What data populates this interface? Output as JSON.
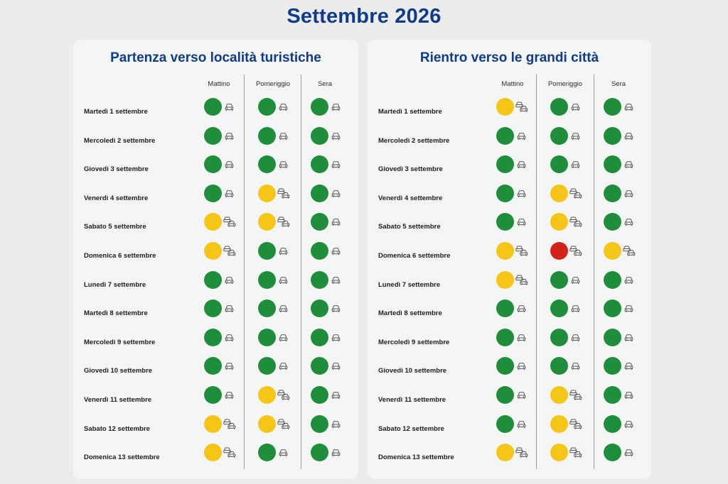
{
  "title": "Settembre 2026",
  "colors": {
    "green": "#1e8e3a",
    "yellow": "#f5c518",
    "red": "#d3231b",
    "title_blue": "#0f3b8a"
  },
  "panels": [
    {
      "title": "Partenza verso località turistiche",
      "columns": [
        "Mattino",
        "Pomeriggio",
        "Sera"
      ],
      "rows": [
        {
          "day": "Martedì 1 settembre",
          "levels": [
            "green",
            "green",
            "green"
          ]
        },
        {
          "day": "Mercoledì 2 settembre",
          "levels": [
            "green",
            "green",
            "green"
          ]
        },
        {
          "day": "Giovedì 3 settembre",
          "levels": [
            "green",
            "green",
            "green"
          ]
        },
        {
          "day": "Venerdì 4 settembre",
          "levels": [
            "green",
            "yellow",
            "green"
          ]
        },
        {
          "day": "Sabato 5 settembre",
          "levels": [
            "yellow",
            "yellow",
            "green"
          ]
        },
        {
          "day": "Domenica 6 settembre",
          "levels": [
            "yellow",
            "green",
            "green"
          ]
        },
        {
          "day": "Lunedì 7 settembre",
          "levels": [
            "green",
            "green",
            "green"
          ]
        },
        {
          "day": "Martedì 8 settembre",
          "levels": [
            "green",
            "green",
            "green"
          ]
        },
        {
          "day": "Mercoledì 9 settembre",
          "levels": [
            "green",
            "green",
            "green"
          ]
        },
        {
          "day": "Giovedì 10 settembre",
          "levels": [
            "green",
            "green",
            "green"
          ]
        },
        {
          "day": "Venerdì 11 settembre",
          "levels": [
            "green",
            "yellow",
            "green"
          ]
        },
        {
          "day": "Sabato 12 settembre",
          "levels": [
            "yellow",
            "yellow",
            "green"
          ]
        },
        {
          "day": "Domenica 13 settembre",
          "levels": [
            "yellow",
            "green",
            "green"
          ]
        }
      ]
    },
    {
      "title": "Rientro verso le grandi città",
      "columns": [
        "Mattino",
        "Pomeriggio",
        "Sera"
      ],
      "rows": [
        {
          "day": "Martedì 1 settembre",
          "levels": [
            "yellow",
            "green",
            "green"
          ]
        },
        {
          "day": "Mercoledì 2 settembre",
          "levels": [
            "green",
            "green",
            "green"
          ]
        },
        {
          "day": "Giovedì 3 settembre",
          "levels": [
            "green",
            "green",
            "green"
          ]
        },
        {
          "day": "Venerdì 4 settembre",
          "levels": [
            "green",
            "yellow",
            "green"
          ]
        },
        {
          "day": "Sabato 5 settembre",
          "levels": [
            "green",
            "yellow",
            "green"
          ]
        },
        {
          "day": "Domenica 6 settembre",
          "levels": [
            "yellow",
            "red",
            "yellow"
          ]
        },
        {
          "day": "Lunedì 7 settembre",
          "levels": [
            "yellow",
            "green",
            "green"
          ]
        },
        {
          "day": "Martedì 8 settembre",
          "levels": [
            "green",
            "green",
            "green"
          ]
        },
        {
          "day": "Mercoledì 9 settembre",
          "levels": [
            "green",
            "green",
            "green"
          ]
        },
        {
          "day": "Giovedì 10 settembre",
          "levels": [
            "green",
            "green",
            "green"
          ]
        },
        {
          "day": "Venerdì 11 settembre",
          "levels": [
            "green",
            "yellow",
            "green"
          ]
        },
        {
          "day": "Sabato 12 settembre",
          "levels": [
            "green",
            "yellow",
            "green"
          ]
        },
        {
          "day": "Domenica 13 settembre",
          "levels": [
            "yellow",
            "yellow",
            "green"
          ]
        }
      ]
    }
  ]
}
